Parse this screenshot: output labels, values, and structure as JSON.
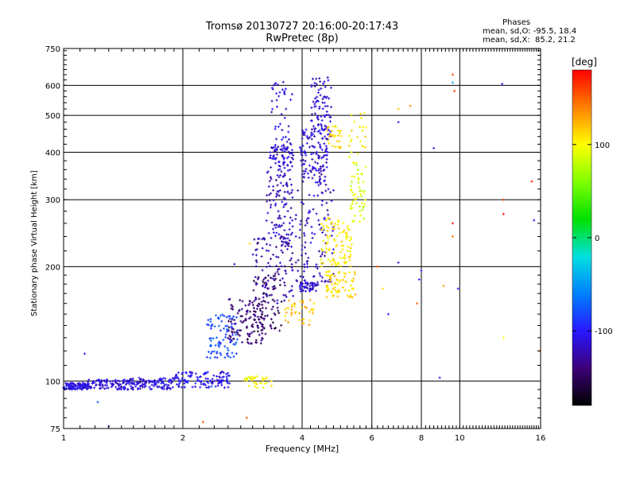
{
  "header": {
    "title_line1": "Tromsø 20130727 20:16:00-20:17:43",
    "title_line2": "RwPretec (8p)",
    "stats_title": "Phases",
    "stats_o": "mean, sd,O: -95.5, 18.4",
    "stats_x": "mean, sd,X:  85.2, 21.2"
  },
  "chart_data": {
    "type": "scatter",
    "xlabel": "Frequency [MHz]",
    "ylabel": "Stationary phase Virtual Height [km]",
    "x_scale": "log",
    "y_scale": "log",
    "xlim": [
      1,
      16
    ],
    "ylim": [
      75,
      750
    ],
    "x_ticks": [
      1,
      2,
      4,
      6,
      8,
      10,
      16
    ],
    "x_tick_labels": [
      "1",
      "2",
      "4",
      "6",
      "8",
      "10",
      "16"
    ],
    "x_grid": [
      2,
      4,
      6,
      8,
      10
    ],
    "y_ticks": [
      75,
      100,
      200,
      300,
      400,
      500,
      600,
      750
    ],
    "y_tick_labels": [
      "75",
      "100",
      "200",
      "300",
      "400",
      "500",
      "600",
      "750"
    ],
    "y_grid": [
      100,
      200,
      300,
      400,
      500,
      600
    ],
    "grid": true,
    "colorbar": {
      "label": "[deg]",
      "range": [
        -180,
        180
      ],
      "ticks": [
        100,
        0,
        -100
      ],
      "tick_labels": [
        "100",
        "0",
        "-100"
      ],
      "colormap": [
        "#000000",
        "#3c0078",
        "#2818ff",
        "#0080ff",
        "#00e0e0",
        "#00e000",
        "#80ff00",
        "#ffff00",
        "#ff8000",
        "#ff0000"
      ]
    },
    "clusters": [
      {
        "x": [
          1.0,
          1.15
        ],
        "y": [
          95,
          99
        ],
        "phase": -108,
        "n": 120
      },
      {
        "x": [
          1.15,
          1.45
        ],
        "y": [
          95,
          101
        ],
        "phase": -112,
        "n": 90
      },
      {
        "x": [
          1.45,
          1.9
        ],
        "y": [
          95,
          102
        ],
        "phase": -110,
        "n": 110
      },
      {
        "x": [
          1.9,
          2.65
        ],
        "y": [
          96,
          106
        ],
        "phase": -105,
        "n": 120
      },
      {
        "x": [
          2.85,
          3.35
        ],
        "y": [
          96,
          103
        ],
        "phase": 100,
        "n": 35
      },
      {
        "x": [
          2.3,
          2.75
        ],
        "y": [
          115,
          150
        ],
        "phase": -80,
        "n": 90
      },
      {
        "x": [
          2.6,
          3.25
        ],
        "y": [
          125,
          165
        ],
        "phase": -140,
        "n": 120
      },
      {
        "x": [
          3.0,
          3.55
        ],
        "y": [
          135,
          190
        ],
        "phase": -150,
        "n": 70
      },
      {
        "x": [
          3.0,
          3.8
        ],
        "y": [
          160,
          240
        ],
        "phase": -125,
        "n": 100
      },
      {
        "x": [
          3.25,
          3.8
        ],
        "y": [
          230,
          420
        ],
        "phase": -118,
        "n": 150
      },
      {
        "x": [
          3.35,
          3.8
        ],
        "y": [
          350,
          620
        ],
        "phase": -110,
        "n": 70
      },
      {
        "x": [
          3.95,
          4.65
        ],
        "y": [
          330,
          460
        ],
        "phase": -115,
        "n": 120
      },
      {
        "x": [
          4.2,
          4.75
        ],
        "y": [
          430,
          630
        ],
        "phase": -112,
        "n": 90
      },
      {
        "x": [
          3.85,
          4.8
        ],
        "y": [
          180,
          330
        ],
        "phase": -118,
        "n": 110
      },
      {
        "x": [
          3.95,
          4.4
        ],
        "y": [
          172,
          182
        ],
        "phase": -112,
        "n": 50
      },
      {
        "x": [
          4.45,
          5.35
        ],
        "y": [
          200,
          270
        ],
        "phase": 105,
        "n": 100
      },
      {
        "x": [
          4.6,
          5.45
        ],
        "y": [
          165,
          195
        ],
        "phase": 110,
        "n": 70
      },
      {
        "x": [
          4.6,
          5.05
        ],
        "y": [
          410,
          470
        ],
        "phase": 110,
        "n": 30
      },
      {
        "x": [
          5.3,
          5.8
        ],
        "y": [
          260,
          380
        ],
        "phase": 85,
        "n": 50
      },
      {
        "x": [
          5.25,
          5.8
        ],
        "y": [
          370,
          520
        ],
        "phase": 105,
        "n": 25
      },
      {
        "x": [
          3.6,
          4.3
        ],
        "y": [
          140,
          165
        ],
        "phase": 120,
        "n": 40
      }
    ],
    "outliers": [
      {
        "x": 1.13,
        "y": 118,
        "phase": -100
      },
      {
        "x": 1.22,
        "y": 88,
        "phase": -70
      },
      {
        "x": 1.3,
        "y": 76,
        "phase": -110
      },
      {
        "x": 2.25,
        "y": 78,
        "phase": 150
      },
      {
        "x": 2.7,
        "y": 203,
        "phase": -110
      },
      {
        "x": 2.9,
        "y": 80,
        "phase": 150
      },
      {
        "x": 2.95,
        "y": 230,
        "phase": 110
      },
      {
        "x": 6.2,
        "y": 200,
        "phase": 160
      },
      {
        "x": 6.4,
        "y": 175,
        "phase": 110
      },
      {
        "x": 6.6,
        "y": 150,
        "phase": -100
      },
      {
        "x": 7.0,
        "y": 205,
        "phase": -110
      },
      {
        "x": 7.0,
        "y": 480,
        "phase": -100
      },
      {
        "x": 7.0,
        "y": 520,
        "phase": 120
      },
      {
        "x": 7.5,
        "y": 530,
        "phase": 140
      },
      {
        "x": 7.8,
        "y": 160,
        "phase": 150
      },
      {
        "x": 7.9,
        "y": 185,
        "phase": -100
      },
      {
        "x": 8.0,
        "y": 195,
        "phase": -110
      },
      {
        "x": 8.6,
        "y": 410,
        "phase": -110
      },
      {
        "x": 8.9,
        "y": 102,
        "phase": -100
      },
      {
        "x": 9.1,
        "y": 178,
        "phase": 130
      },
      {
        "x": 9.6,
        "y": 640,
        "phase": 160
      },
      {
        "x": 9.6,
        "y": 610,
        "phase": -40
      },
      {
        "x": 9.7,
        "y": 580,
        "phase": 160
      },
      {
        "x": 9.6,
        "y": 260,
        "phase": 170
      },
      {
        "x": 9.6,
        "y": 240,
        "phase": 140
      },
      {
        "x": 9.9,
        "y": 175,
        "phase": -100
      },
      {
        "x": 12.8,
        "y": 605,
        "phase": -100
      },
      {
        "x": 12.9,
        "y": 300,
        "phase": 160
      },
      {
        "x": 12.9,
        "y": 275,
        "phase": 175
      },
      {
        "x": 12.9,
        "y": 130,
        "phase": 100
      },
      {
        "x": 15.2,
        "y": 335,
        "phase": 170
      },
      {
        "x": 15.4,
        "y": 265,
        "phase": -100
      },
      {
        "x": 15.9,
        "y": 120,
        "phase": 130
      }
    ]
  }
}
